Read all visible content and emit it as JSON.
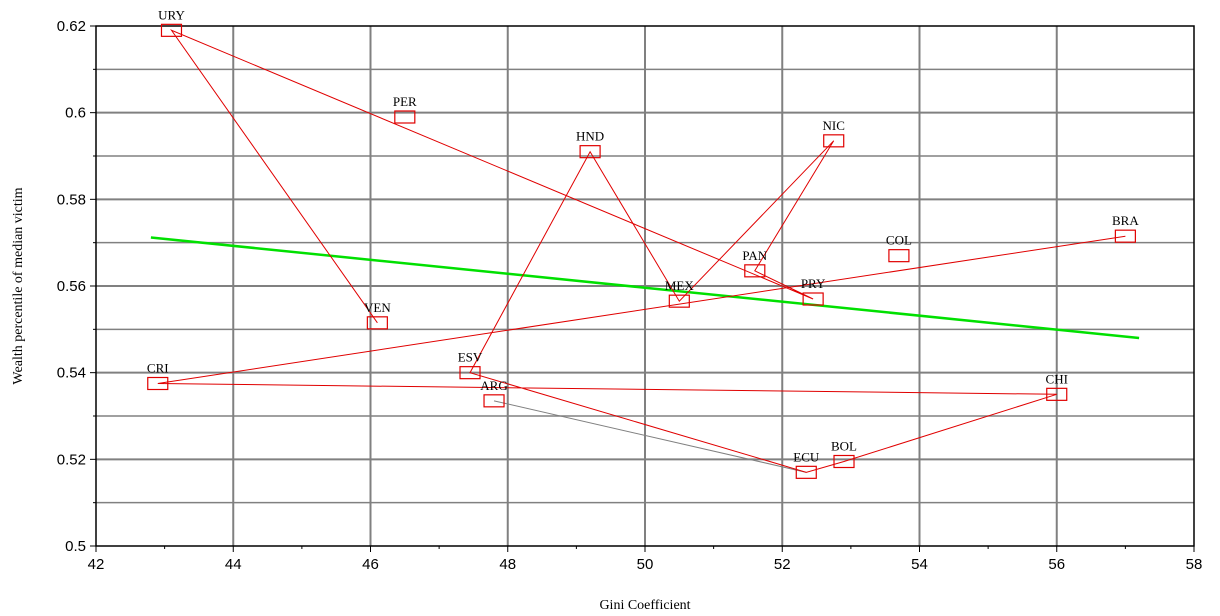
{
  "chart_data": {
    "type": "scatter",
    "title": "",
    "xlabel": "Gini Coefficient",
    "ylabel": "Wealth percentile of median victim",
    "xlim": [
      42,
      58
    ],
    "ylim": [
      0.5,
      0.62
    ],
    "x_ticks": [
      "42",
      "44",
      "46",
      "48",
      "50",
      "52",
      "54",
      "56",
      "58"
    ],
    "y_ticks": [
      "0.5",
      "0.52",
      "0.54",
      "0.56",
      "0.58",
      "0.6",
      "0.62"
    ],
    "grid": true,
    "colors": {
      "points": "#e00000",
      "path": "#e00000",
      "trend": "#00e000",
      "connector": "#808080",
      "grid": "#808080"
    },
    "points": [
      {
        "label": "URY",
        "x": 43.1,
        "y": 0.619
      },
      {
        "label": "PER",
        "x": 46.5,
        "y": 0.599
      },
      {
        "label": "HND",
        "x": 49.2,
        "y": 0.591
      },
      {
        "label": "NIC",
        "x": 52.75,
        "y": 0.5935
      },
      {
        "label": "BRA",
        "x": 57.0,
        "y": 0.5715
      },
      {
        "label": "COL",
        "x": 53.7,
        "y": 0.567
      },
      {
        "label": "PAN",
        "x": 51.6,
        "y": 0.5635
      },
      {
        "label": "PRY",
        "x": 52.45,
        "y": 0.557
      },
      {
        "label": "MEX",
        "x": 50.5,
        "y": 0.5565
      },
      {
        "label": "VEN",
        "x": 46.1,
        "y": 0.5515
      },
      {
        "label": "CRI",
        "x": 42.9,
        "y": 0.5375
      },
      {
        "label": "ESV",
        "x": 47.45,
        "y": 0.54
      },
      {
        "label": "ARG",
        "x": 47.8,
        "y": 0.5335
      },
      {
        "label": "CHI",
        "x": 56.0,
        "y": 0.535
      },
      {
        "label": "BOL",
        "x": 52.9,
        "y": 0.5195
      },
      {
        "label": "ECU",
        "x": 52.35,
        "y": 0.517
      }
    ],
    "path": [
      "VEN",
      "URY",
      "PRY",
      "PAN",
      "NIC",
      "MEX",
      "HND",
      "ESV",
      "ECU",
      "BOL",
      "CHI",
      "CRI",
      "BRA"
    ],
    "connector": [
      "ARG",
      "ECU"
    ],
    "trend": {
      "x": [
        42.8,
        57.2
      ],
      "y": [
        0.5712,
        0.548
      ]
    }
  }
}
